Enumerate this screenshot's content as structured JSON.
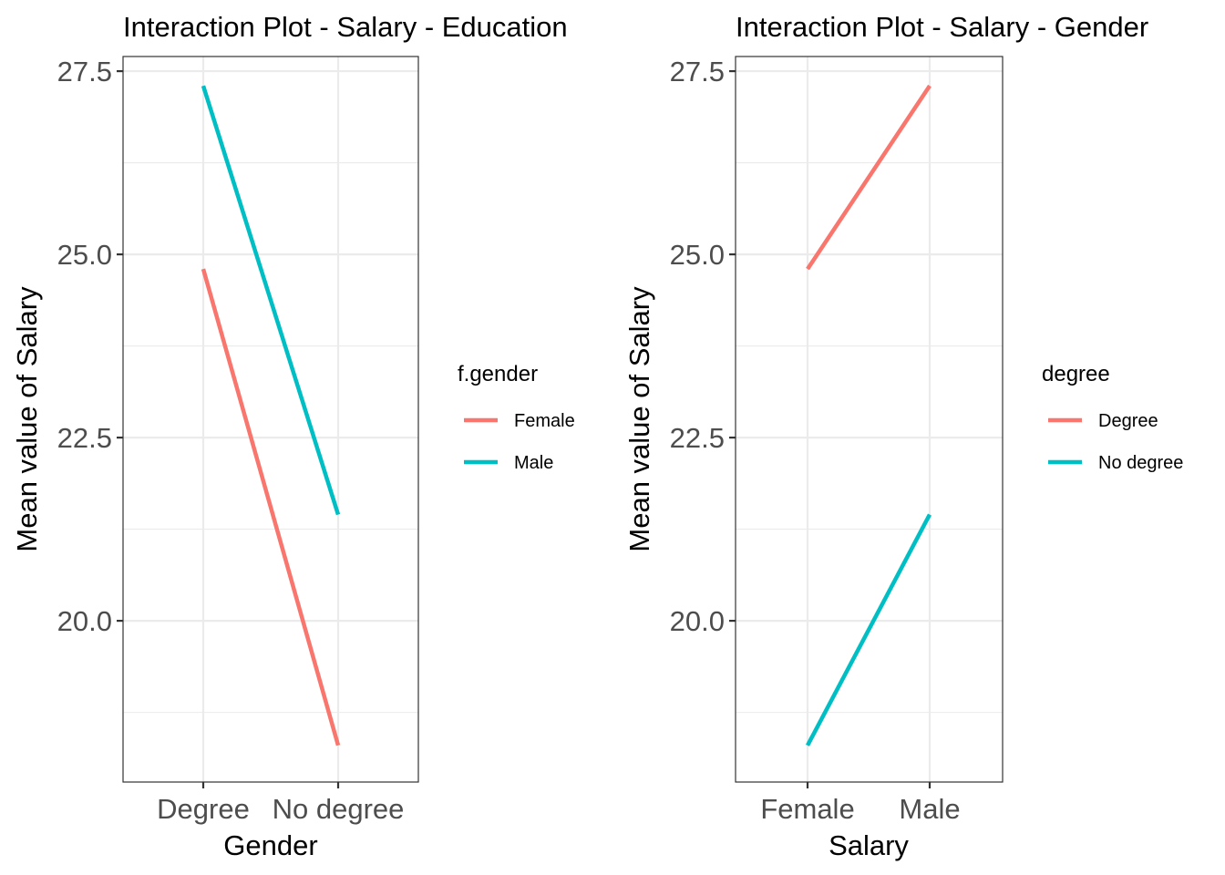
{
  "chart_data": [
    {
      "type": "line",
      "title": "Interaction Plot - Salary - Education",
      "xlabel": "Gender",
      "ylabel": "Mean value of Salary",
      "categories": [
        "Degree",
        "No degree"
      ],
      "series": [
        {
          "name": "Female",
          "values": [
            24.8,
            18.3
          ],
          "color": "#F8766D"
        },
        {
          "name": "Male",
          "values": [
            27.3,
            21.45
          ],
          "color": "#00BFC4"
        }
      ],
      "ylim": [
        17.8,
        27.7
      ],
      "yticks": [
        "20.0",
        "22.5",
        "25.0",
        "27.5"
      ],
      "grid": true,
      "legend": {
        "title": "f.gender",
        "position": "right"
      }
    },
    {
      "type": "line",
      "title": "Interaction Plot - Salary - Gender",
      "xlabel": "Salary",
      "ylabel": "Mean value of Salary",
      "categories": [
        "Female",
        "Male"
      ],
      "series": [
        {
          "name": "Degree",
          "values": [
            24.8,
            27.3
          ],
          "color": "#F8766D"
        },
        {
          "name": "No degree",
          "values": [
            18.3,
            21.45
          ],
          "color": "#00BFC4"
        }
      ],
      "ylim": [
        17.8,
        27.7
      ],
      "yticks": [
        "20.0",
        "22.5",
        "25.0",
        "27.5"
      ],
      "grid": true,
      "legend": {
        "title": "degree",
        "position": "right"
      }
    }
  ]
}
